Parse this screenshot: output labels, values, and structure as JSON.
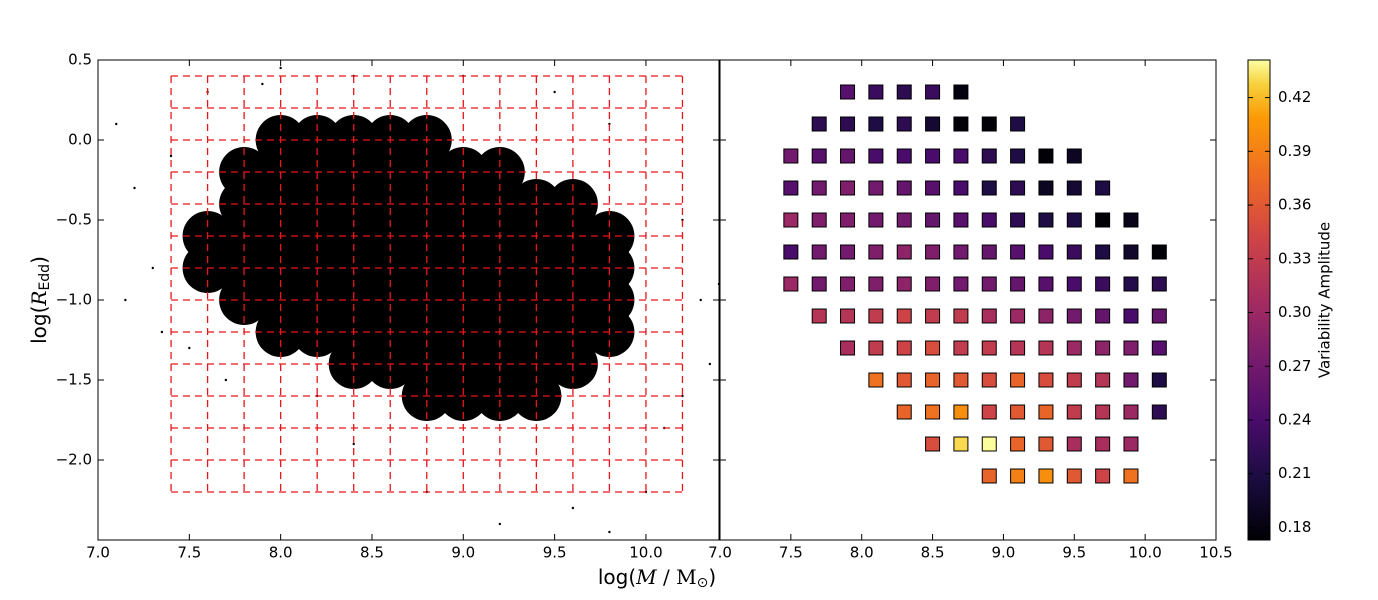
{
  "chart_data": [
    {
      "type": "scatter",
      "xlabel": [
        "log(",
        "M",
        " / M",
        "⊙",
        ")"
      ],
      "ylabel": [
        "log(",
        "R",
        "Edd",
        ")"
      ],
      "xlim": [
        7.0,
        10.4
      ],
      "ylim": [
        -2.5,
        0.5
      ],
      "xticks": [
        {
          "value": 7,
          "label": "7.0"
        },
        7.5,
        {
          "value": 8,
          "label": "8.0"
        },
        8.5,
        {
          "value": 9,
          "label": "9.0"
        },
        9.5,
        {
          "value": 10,
          "label": "10.0"
        }
      ],
      "yticks": [
        0.5,
        {
          "value": 0,
          "label": "0.0"
        },
        {
          "value": -0.5,
          "label": "−0.5"
        },
        {
          "value": -1,
          "label": "−1.0"
        },
        {
          "value": -1.5,
          "label": "−1.5"
        },
        {
          "value": -2,
          "label": "−2.0"
        }
      ],
      "color": "#000000",
      "dense_rows": [
        {
          "y": 0.0,
          "x": [
            8.0,
            8.2,
            8.4,
            8.6,
            8.8
          ]
        },
        {
          "y": -0.2,
          "x": [
            7.8,
            8.0,
            8.2,
            8.4,
            8.6,
            8.8,
            9.0,
            9.2
          ]
        },
        {
          "y": -0.4,
          "x": [
            7.8,
            8.0,
            8.2,
            8.4,
            8.6,
            8.8,
            9.0,
            9.2,
            9.4,
            9.6
          ]
        },
        {
          "y": -0.6,
          "x": [
            7.6,
            7.8,
            8.0,
            8.2,
            8.4,
            8.6,
            8.8,
            9.0,
            9.2,
            9.4,
            9.6,
            9.8
          ]
        },
        {
          "y": -0.8,
          "x": [
            7.6,
            7.8,
            8.0,
            8.2,
            8.4,
            8.6,
            8.8,
            9.0,
            9.2,
            9.4,
            9.6,
            9.8
          ]
        },
        {
          "y": -1.0,
          "x": [
            7.8,
            8.0,
            8.2,
            8.4,
            8.6,
            8.8,
            9.0,
            9.2,
            9.4,
            9.6,
            9.8
          ]
        },
        {
          "y": -1.2,
          "x": [
            8.0,
            8.2,
            8.4,
            8.6,
            8.8,
            9.0,
            9.2,
            9.4,
            9.6,
            9.8
          ]
        },
        {
          "y": -1.4,
          "x": [
            8.4,
            8.6,
            8.8,
            9.0,
            9.2,
            9.4,
            9.6
          ]
        },
        {
          "y": -1.6,
          "x": [
            8.8,
            9.0,
            9.2,
            9.4
          ]
        }
      ],
      "sparse": {
        "x": [
          7.1,
          7.2,
          7.15,
          7.3,
          7.4,
          7.35,
          7.6,
          8.0,
          8.4,
          9.0,
          9.8,
          10.2,
          10.3,
          10.35,
          10.1,
          10.0,
          9.6,
          9.2,
          9.8,
          8.8,
          8.4,
          7.7,
          7.5,
          10.2,
          7.9,
          9.5,
          8.2,
          10.4
        ],
        "y": [
          0.1,
          -0.3,
          -1.0,
          -0.8,
          -0.1,
          -1.2,
          0.3,
          0.45,
          0.4,
          0.4,
          0.1,
          -0.5,
          -1.0,
          -1.4,
          -1.8,
          -2.2,
          -2.3,
          -2.4,
          -2.45,
          -2.2,
          -1.9,
          -1.5,
          -1.3,
          -1.6,
          0.35,
          0.3,
          -1.6,
          -0.9
        ]
      },
      "bins_x": [
        7.4,
        7.6,
        7.8,
        8.0,
        8.2,
        8.4,
        8.6,
        8.8,
        9.0,
        9.2,
        9.4,
        9.6,
        9.8,
        10.0,
        10.2
      ],
      "bins_y": [
        0.4,
        0.2,
        0.0,
        -0.2,
        -0.4,
        -0.6,
        -0.8,
        -1.0,
        -1.2,
        -1.4,
        -1.6,
        -1.8,
        -2.0,
        -2.2
      ]
    },
    {
      "type": "binned_scatter",
      "xlim": [
        7.0,
        10.5
      ],
      "ylim": [
        -2.5,
        0.5
      ],
      "xticks": [
        {
          "value": 7,
          "label": "7.0"
        },
        7.5,
        {
          "value": 8,
          "label": "8.0"
        },
        8.5,
        {
          "value": 9,
          "label": "9.0"
        },
        9.5,
        {
          "value": 10,
          "label": "10.0"
        },
        10.5
      ],
      "yticks": [
        0.5,
        0,
        -0.5,
        -1,
        -1.5,
        -2
      ],
      "colormap": "inferno",
      "rows": [
        {
          "y": 0.3,
          "x": [
            7.9,
            8.1,
            8.3,
            8.5,
            8.7
          ],
          "values": [
            0.25,
            0.23,
            0.22,
            0.23,
            0.18
          ]
        },
        {
          "y": 0.1,
          "x": [
            7.7,
            7.9,
            8.1,
            8.3,
            8.5,
            8.7,
            8.9,
            9.1
          ],
          "values": [
            0.22,
            0.22,
            0.21,
            0.22,
            0.2,
            0.175,
            0.175,
            0.21
          ]
        },
        {
          "y": -0.1,
          "x": [
            7.5,
            7.7,
            7.9,
            8.1,
            8.3,
            8.5,
            8.7,
            8.9,
            9.1,
            9.3,
            9.5
          ],
          "values": [
            0.27,
            0.25,
            0.26,
            0.24,
            0.24,
            0.24,
            0.24,
            0.22,
            0.21,
            0.175,
            0.19
          ]
        },
        {
          "y": -0.3,
          "x": [
            7.5,
            7.7,
            7.9,
            8.1,
            8.3,
            8.5,
            8.7,
            8.9,
            9.1,
            9.3,
            9.5,
            9.7
          ],
          "values": [
            0.25,
            0.27,
            0.28,
            0.27,
            0.26,
            0.25,
            0.24,
            0.21,
            0.22,
            0.19,
            0.2,
            0.21
          ]
        },
        {
          "y": -0.5,
          "x": [
            7.5,
            7.7,
            7.9,
            8.1,
            8.3,
            8.5,
            8.7,
            8.9,
            9.1,
            9.3,
            9.5,
            9.7,
            9.9
          ],
          "values": [
            0.3,
            0.28,
            0.28,
            0.27,
            0.27,
            0.26,
            0.25,
            0.24,
            0.22,
            0.21,
            0.21,
            0.175,
            0.185
          ]
        },
        {
          "y": -0.7,
          "x": [
            7.5,
            7.7,
            7.9,
            8.1,
            8.3,
            8.5,
            8.7,
            8.9,
            9.1,
            9.3,
            9.5,
            9.7,
            9.9,
            10.1
          ],
          "values": [
            0.24,
            0.27,
            0.27,
            0.28,
            0.29,
            0.28,
            0.27,
            0.26,
            0.25,
            0.24,
            0.23,
            0.21,
            0.195,
            0.175
          ]
        },
        {
          "y": -0.9,
          "x": [
            7.5,
            7.7,
            7.9,
            8.1,
            8.3,
            8.5,
            8.7,
            8.9,
            9.1,
            9.3,
            9.5,
            9.7,
            9.9,
            10.1
          ],
          "values": [
            0.3,
            0.27,
            0.28,
            0.28,
            0.29,
            0.28,
            0.27,
            0.27,
            0.26,
            0.25,
            0.24,
            0.23,
            0.215,
            0.22
          ]
        },
        {
          "y": -1.1,
          "x": [
            7.7,
            7.9,
            8.1,
            8.3,
            8.5,
            8.7,
            8.9,
            9.1,
            9.3,
            9.5,
            9.7,
            9.9,
            10.1
          ],
          "values": [
            0.32,
            0.32,
            0.33,
            0.34,
            0.33,
            0.33,
            0.31,
            0.3,
            0.29,
            0.27,
            0.26,
            0.24,
            0.26
          ]
        },
        {
          "y": -1.3,
          "x": [
            7.9,
            8.1,
            8.3,
            8.5,
            8.7,
            8.9,
            9.1,
            9.3,
            9.5,
            9.7,
            9.9,
            10.1
          ],
          "values": [
            0.31,
            0.33,
            0.34,
            0.35,
            0.33,
            0.33,
            0.32,
            0.32,
            0.3,
            0.29,
            0.28,
            0.25
          ]
        },
        {
          "y": -1.5,
          "x": [
            8.1,
            8.3,
            8.5,
            8.7,
            8.9,
            9.1,
            9.3,
            9.5,
            9.7,
            9.9,
            10.1
          ],
          "values": [
            0.38,
            0.36,
            0.37,
            0.36,
            0.35,
            0.37,
            0.35,
            0.33,
            0.32,
            0.27,
            0.21
          ]
        },
        {
          "y": -1.7,
          "x": [
            8.3,
            8.5,
            8.7,
            8.9,
            9.1,
            9.3,
            9.5,
            9.7,
            9.9,
            10.1
          ],
          "values": [
            0.37,
            0.38,
            0.4,
            0.34,
            0.36,
            0.37,
            0.33,
            0.32,
            0.3,
            0.22
          ]
        },
        {
          "y": -1.9,
          "x": [
            8.5,
            8.7,
            8.9,
            9.1,
            9.3,
            9.5,
            9.7,
            9.9
          ],
          "values": [
            0.35,
            0.43,
            0.44,
            0.37,
            0.36,
            0.31,
            0.31,
            0.3
          ]
        },
        {
          "y": -2.1,
          "x": [
            8.9,
            9.1,
            9.3,
            9.5,
            9.7,
            9.9
          ],
          "values": [
            0.37,
            0.39,
            0.4,
            0.36,
            0.34,
            0.38
          ]
        }
      ],
      "colorbar": {
        "label": "Variability Amplitude",
        "clim": [
          0.173,
          0.441
        ],
        "ticks": [
          0.18,
          0.21,
          0.24,
          0.27,
          {
            "value": 0.3,
            "label": "0.30"
          },
          0.33,
          0.36,
          0.39,
          0.42
        ]
      }
    }
  ]
}
